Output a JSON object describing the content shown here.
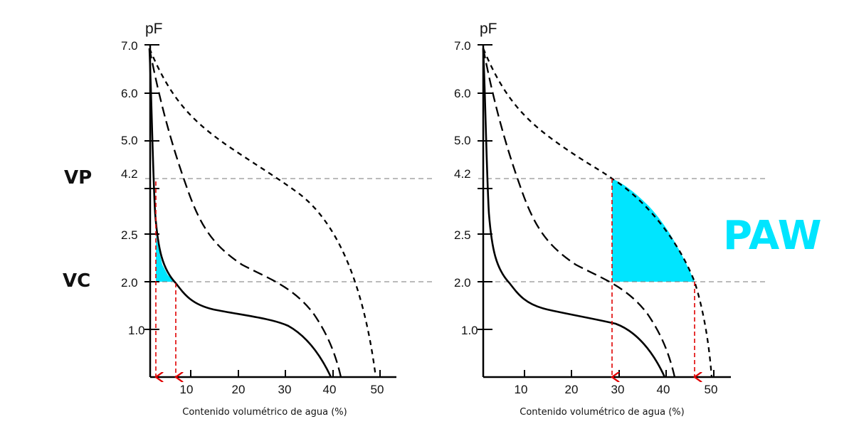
{
  "chart_data": [
    {
      "type": "line",
      "ylabel": "pF",
      "xlabel": "Contenido volumétrico de agua (%)",
      "ytick_labels": [
        "7.0",
        "6.0",
        "5.0",
        "4.2",
        "2.5",
        "2.0",
        "1.0"
      ],
      "xtick_labels": [
        "10",
        "20",
        "30",
        "40",
        "50"
      ],
      "xlim": [
        0,
        52
      ],
      "ylim": [
        0,
        7
      ],
      "reference_lines": [
        {
          "label": "VP",
          "pF": 4.2
        },
        {
          "label": "VC",
          "pF": 2.0
        }
      ],
      "series": [
        {
          "style": "solid",
          "points": [
            [
              0,
              7
            ],
            [
              0.5,
              6
            ],
            [
              0.9,
              5
            ],
            [
              1.3,
              4.2
            ],
            [
              1.8,
              3
            ],
            [
              2.5,
              2.5
            ],
            [
              4.5,
              2.2
            ],
            [
              7.4,
              2.0
            ],
            [
              10,
              1.6
            ],
            [
              20,
              1.2
            ],
            [
              30,
              1.0
            ],
            [
              36,
              0.6
            ],
            [
              40,
              0
            ]
          ]
        },
        {
          "style": "long-dash",
          "points": [
            [
              0,
              7
            ],
            [
              2,
              6
            ],
            [
              4.5,
              5
            ],
            [
              7,
              4.2
            ],
            [
              12,
              3
            ],
            [
              18,
              2.5
            ],
            [
              27,
              2.0
            ],
            [
              35,
              1.3
            ],
            [
              40,
              0.5
            ],
            [
              42,
              0
            ]
          ]
        },
        {
          "style": "short-dash",
          "points": [
            [
              0,
              7
            ],
            [
              3,
              6
            ],
            [
              10,
              5
            ],
            [
              25,
              4.2
            ],
            [
              35,
              3
            ],
            [
              40,
              2.5
            ],
            [
              45,
              1.8
            ],
            [
              48,
              1
            ],
            [
              49,
              0
            ]
          ]
        }
      ],
      "highlight": {
        "color": "#00e5ff",
        "from_pF": 2.0,
        "to_pF": 2.5,
        "under_series": "solid"
      },
      "markers": [
        {
          "style": "red-dashed-arrow",
          "x": 0.8
        },
        {
          "style": "red-dashed-arrow",
          "x": 7.4
        }
      ]
    },
    {
      "type": "line",
      "ylabel": "pF",
      "xlabel": "Contenido volumétrico de agua (%)",
      "ytick_labels": [
        "7.0",
        "6.0",
        "5.0",
        "4.2",
        "2.5",
        "2.0",
        "1.0"
      ],
      "xtick_labels": [
        "10",
        "20",
        "30",
        "40",
        "50"
      ],
      "xlim": [
        0,
        52
      ],
      "ylim": [
        0,
        7
      ],
      "series": [
        {
          "style": "solid",
          "points": [
            [
              0,
              7
            ],
            [
              0.5,
              6
            ],
            [
              0.9,
              5
            ],
            [
              1.3,
              4.2
            ],
            [
              1.8,
              3
            ],
            [
              2.5,
              2.5
            ],
            [
              4.5,
              2.2
            ],
            [
              7.4,
              2.0
            ],
            [
              10,
              1.6
            ],
            [
              20,
              1.2
            ],
            [
              28,
              1.1
            ],
            [
              36,
              0.6
            ],
            [
              40,
              0
            ]
          ]
        },
        {
          "style": "long-dash",
          "points": [
            [
              0,
              7
            ],
            [
              2,
              6
            ],
            [
              4.5,
              5
            ],
            [
              7,
              4.2
            ],
            [
              12,
              3
            ],
            [
              18,
              2.5
            ],
            [
              27,
              2.0
            ],
            [
              35,
              1.3
            ],
            [
              40,
              0.5
            ],
            [
              42,
              0
            ]
          ]
        },
        {
          "style": "short-dash",
          "points": [
            [
              0,
              7
            ],
            [
              3,
              6
            ],
            [
              10,
              5
            ],
            [
              27,
              4.2
            ],
            [
              35,
              3
            ],
            [
              40,
              2.5
            ],
            [
              45,
              1.8
            ],
            [
              48,
              1
            ],
            [
              49,
              0
            ]
          ]
        }
      ],
      "highlight": {
        "color": "#00e5ff",
        "label": "PAW",
        "from_pF": 2.0,
        "to_pF": 4.2,
        "x_from": 27.5,
        "x_to": 45.2,
        "under_series": "short-dash"
      },
      "markers": [
        {
          "style": "red-dashed-arrow",
          "x": 27.5
        },
        {
          "style": "red-dashed-arrow",
          "x": 45.2
        }
      ]
    }
  ]
}
